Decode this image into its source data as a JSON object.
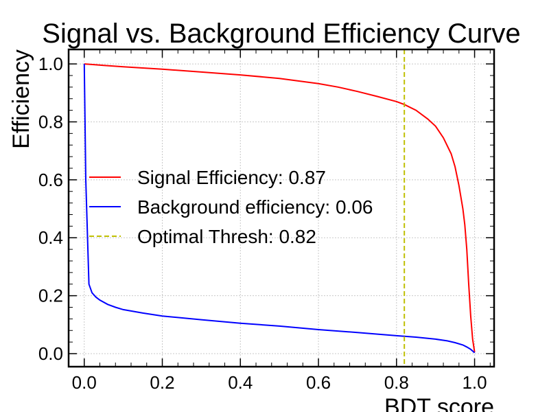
{
  "chart_data": {
    "type": "line",
    "title": "Signal vs. Background Efficiency Curve",
    "xlabel": "BDT score",
    "ylabel": "Efficiency",
    "xlim": [
      -0.04,
      1.05
    ],
    "ylim": [
      -0.045,
      1.05
    ],
    "xticks": [
      0.0,
      0.2,
      0.4,
      0.6,
      0.8,
      1.0
    ],
    "xtick_labels": [
      "0.0",
      "0.2",
      "0.4",
      "0.6",
      "0.8",
      "1.0"
    ],
    "yticks": [
      0.0,
      0.2,
      0.4,
      0.6,
      0.8,
      1.0
    ],
    "ytick_labels": [
      "0.0",
      "0.2",
      "0.4",
      "0.6",
      "0.8",
      "1.0"
    ],
    "grid": true,
    "legend_position": "center-left",
    "series": [
      {
        "name": "Signal Efficiency: 0.87",
        "color": "#ff0000",
        "style": "solid",
        "x": [
          0.0,
          0.05,
          0.1,
          0.2,
          0.3,
          0.4,
          0.5,
          0.6,
          0.65,
          0.7,
          0.75,
          0.8,
          0.82,
          0.85,
          0.88,
          0.9,
          0.92,
          0.94,
          0.95,
          0.96,
          0.97,
          0.975,
          0.98,
          0.985,
          0.99,
          0.995,
          1.0
        ],
        "y": [
          1.0,
          0.995,
          0.99,
          0.982,
          0.972,
          0.962,
          0.95,
          0.932,
          0.92,
          0.905,
          0.888,
          0.87,
          0.86,
          0.84,
          0.81,
          0.785,
          0.745,
          0.69,
          0.645,
          0.58,
          0.5,
          0.445,
          0.36,
          0.24,
          0.13,
          0.05,
          0.005
        ]
      },
      {
        "name": "Background efficiency: 0.06",
        "color": "#0000ff",
        "style": "solid",
        "x": [
          0.0,
          0.004,
          0.012,
          0.02,
          0.03,
          0.04,
          0.06,
          0.08,
          0.1,
          0.15,
          0.2,
          0.3,
          0.4,
          0.5,
          0.6,
          0.7,
          0.8,
          0.85,
          0.9,
          0.93,
          0.95,
          0.97,
          0.98,
          0.99,
          1.0
        ],
        "y": [
          1.0,
          0.6,
          0.24,
          0.21,
          0.195,
          0.185,
          0.17,
          0.16,
          0.152,
          0.14,
          0.13,
          0.117,
          0.105,
          0.095,
          0.083,
          0.073,
          0.062,
          0.057,
          0.05,
          0.044,
          0.038,
          0.03,
          0.023,
          0.015,
          0.003
        ]
      },
      {
        "name": "Optimal Thresh: 0.82",
        "color": "#bfbf00",
        "style": "dashed",
        "vline_x": 0.82
      }
    ]
  }
}
